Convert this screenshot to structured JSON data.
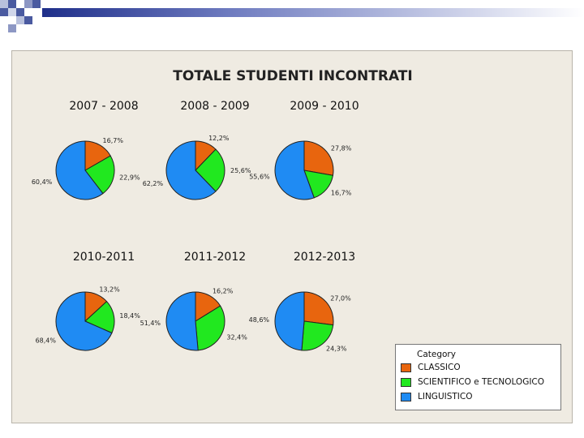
{
  "colors": {
    "CLASSICO": "#e8650e",
    "SCIENTIFICO e TECNOLOGICO": "#21e81f",
    "LINGUISTICO": "#1f8bf3"
  },
  "chart_data": {
    "type": "pie",
    "title": "TOTALE STUDENTI INCONTRATI",
    "categories": [
      "CLASSICO",
      "SCIENTIFICO e TECNOLOGICO",
      "LINGUISTICO"
    ],
    "legend": {
      "title": "Category",
      "placement": "bottom-right"
    },
    "pies": [
      {
        "title": "2007 - 2008",
        "values": [
          16.7,
          22.9,
          60.4
        ],
        "labels": [
          "16,7%",
          "22,9%",
          "60,4%"
        ]
      },
      {
        "title": "2008 - 2009",
        "values": [
          12.2,
          25.6,
          62.2
        ],
        "labels": [
          "12,2%",
          "25,6%",
          "62,2%"
        ]
      },
      {
        "title": "2009 - 2010",
        "values": [
          27.8,
          16.7,
          55.6
        ],
        "labels": [
          "27,8%",
          "16,7%",
          "55,6%"
        ]
      },
      {
        "title": "2010-2011",
        "values": [
          13.2,
          18.4,
          68.4
        ],
        "labels": [
          "13,2%",
          "18,4%",
          "68,4%"
        ]
      },
      {
        "title": "2011-2012",
        "values": [
          16.2,
          32.4,
          51.4
        ],
        "labels": [
          "16,2%",
          "32,4%",
          "51,4%"
        ]
      },
      {
        "title": "2012-2013",
        "values": [
          27.0,
          24.3,
          48.6
        ],
        "labels": [
          "27,0%",
          "24,3%",
          "48,6%"
        ]
      }
    ]
  }
}
